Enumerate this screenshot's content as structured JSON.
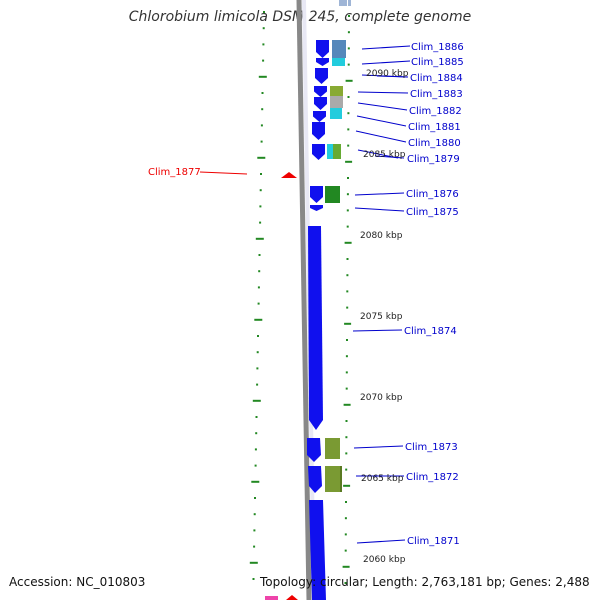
{
  "title": "Chlorobium limicola DSM 245, complete genome",
  "footer": {
    "accession": "Accession: NC_010803",
    "stats": "Topology: circular; Length: 2,763,181 bp; Genes: 2,488"
  },
  "colors": {
    "forward_gene": "#1010ee",
    "tick": "#228822",
    "label_blue": "#0000cc",
    "highlight": "#ee0000"
  },
  "scale_labels": [
    "2090 kbp",
    "2085 kbp",
    "2080 kbp",
    "2075 kbp",
    "2070 kbp",
    "2065 kbp",
    "2060 kbp"
  ],
  "genes": [
    {
      "name": "Clim_1886"
    },
    {
      "name": "Clim_1885"
    },
    {
      "name": "Clim_1884"
    },
    {
      "name": "Clim_1883"
    },
    {
      "name": "Clim_1882"
    },
    {
      "name": "Clim_1881"
    },
    {
      "name": "Clim_1880"
    },
    {
      "name": "Clim_1879"
    },
    {
      "name": "Clim_1876"
    },
    {
      "name": "Clim_1875"
    },
    {
      "name": "Clim_1874"
    },
    {
      "name": "Clim_1873"
    },
    {
      "name": "Clim_1872"
    },
    {
      "name": "Clim_1871"
    }
  ],
  "highlighted_gene": {
    "name": "Clim_1877"
  }
}
